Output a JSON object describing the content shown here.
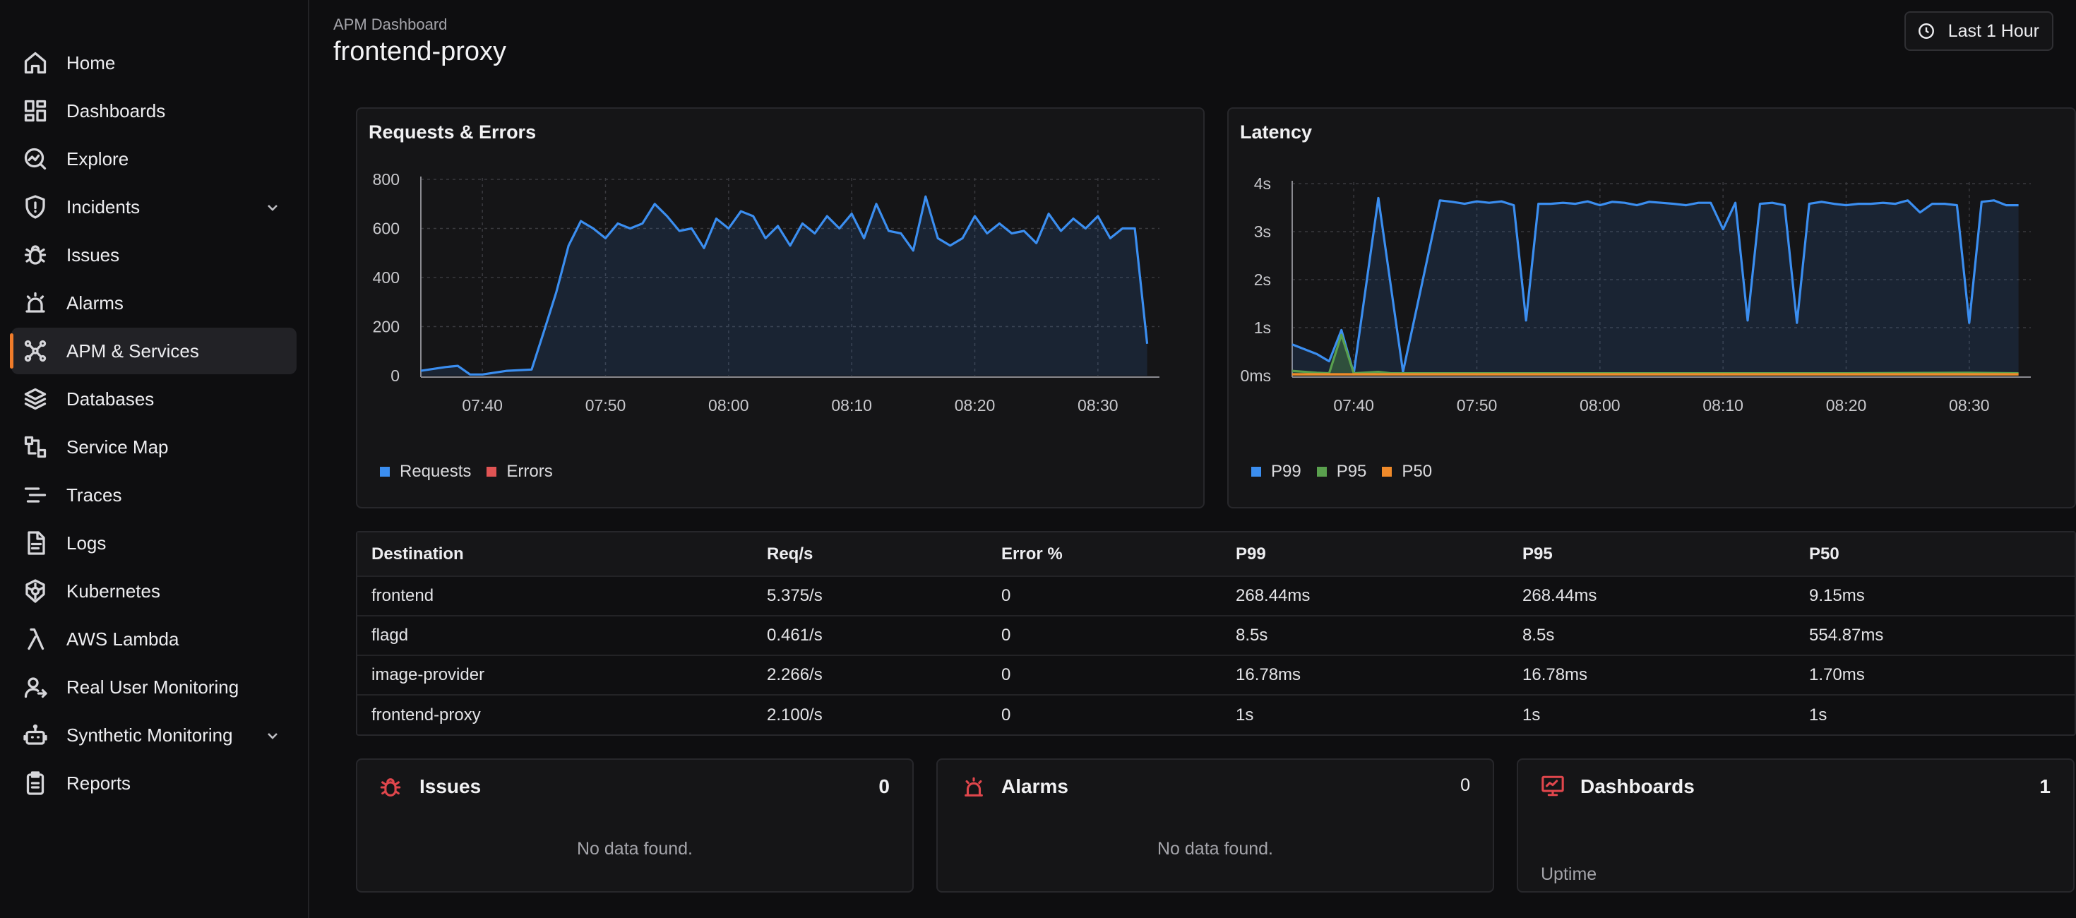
{
  "sidebar": {
    "items": [
      {
        "label": "Home",
        "icon": "home-icon"
      },
      {
        "label": "Dashboards",
        "icon": "dashboards-icon"
      },
      {
        "label": "Explore",
        "icon": "explore-icon"
      },
      {
        "label": "Incidents",
        "icon": "shield-icon",
        "expandable": true
      },
      {
        "label": "Issues",
        "icon": "bug-icon"
      },
      {
        "label": "Alarms",
        "icon": "alarm-icon"
      },
      {
        "label": "APM & Services",
        "icon": "apm-icon",
        "active": true
      },
      {
        "label": "Databases",
        "icon": "database-icon"
      },
      {
        "label": "Service Map",
        "icon": "service-map-icon"
      },
      {
        "label": "Traces",
        "icon": "traces-icon"
      },
      {
        "label": "Logs",
        "icon": "logs-icon"
      },
      {
        "label": "Kubernetes",
        "icon": "kubernetes-icon"
      },
      {
        "label": "AWS Lambda",
        "icon": "lambda-icon"
      },
      {
        "label": "Real User Monitoring",
        "icon": "user-icon"
      },
      {
        "label": "Synthetic Monitoring",
        "icon": "robot-icon",
        "expandable": true
      },
      {
        "label": "Reports",
        "icon": "reports-icon"
      }
    ]
  },
  "header": {
    "breadcrumb": "APM Dashboard",
    "title": "frontend-proxy",
    "time_range": "Last 1 Hour"
  },
  "requests_card": {
    "title": "Requests & Errors"
  },
  "latency_card": {
    "title": "Latency"
  },
  "chart_data": [
    {
      "type": "area",
      "title": "Requests & Errors",
      "xlabel": "",
      "ylabel": "",
      "ylim": [
        0,
        800
      ],
      "yticks": [
        0,
        200,
        400,
        600,
        800
      ],
      "ytick_labels": [
        "0",
        "200",
        "400",
        "600",
        "800"
      ],
      "xticks": [
        "07:40",
        "07:50",
        "08:00",
        "08:10",
        "08:20",
        "08:30"
      ],
      "x_range": [
        "07:35",
        "08:35"
      ],
      "grid": true,
      "legend": "bottom-left",
      "series": [
        {
          "name": "Requests",
          "color": "#3b8ef0",
          "points": [
            [
              "07:35",
              20
            ],
            [
              "07:37",
              35
            ],
            [
              "07:38",
              40
            ],
            [
              "07:39",
              5
            ],
            [
              "07:40",
              5
            ],
            [
              "07:42",
              20
            ],
            [
              "07:44",
              25
            ],
            [
              "07:45",
              180
            ],
            [
              "07:46",
              340
            ],
            [
              "07:47",
              530
            ],
            [
              "07:48",
              630
            ],
            [
              "07:49",
              600
            ],
            [
              "07:50",
              560
            ],
            [
              "07:51",
              620
            ],
            [
              "07:52",
              600
            ],
            [
              "07:53",
              620
            ],
            [
              "07:54",
              700
            ],
            [
              "07:55",
              650
            ],
            [
              "07:56",
              590
            ],
            [
              "07:57",
              600
            ],
            [
              "07:58",
              520
            ],
            [
              "07:59",
              640
            ],
            [
              "08:00",
              600
            ],
            [
              "08:01",
              670
            ],
            [
              "08:02",
              650
            ],
            [
              "08:03",
              560
            ],
            [
              "08:04",
              610
            ],
            [
              "08:05",
              530
            ],
            [
              "08:06",
              620
            ],
            [
              "08:07",
              580
            ],
            [
              "08:08",
              650
            ],
            [
              "08:09",
              600
            ],
            [
              "08:10",
              660
            ],
            [
              "08:11",
              560
            ],
            [
              "08:12",
              700
            ],
            [
              "08:13",
              590
            ],
            [
              "08:14",
              580
            ],
            [
              "08:15",
              510
            ],
            [
              "08:16",
              730
            ],
            [
              "08:17",
              560
            ],
            [
              "08:18",
              530
            ],
            [
              "08:19",
              560
            ],
            [
              "08:20",
              650
            ],
            [
              "08:21",
              580
            ],
            [
              "08:22",
              620
            ],
            [
              "08:23",
              580
            ],
            [
              "08:24",
              590
            ],
            [
              "08:25",
              540
            ],
            [
              "08:26",
              660
            ],
            [
              "08:27",
              590
            ],
            [
              "08:28",
              640
            ],
            [
              "08:29",
              600
            ],
            [
              "08:30",
              650
            ],
            [
              "08:31",
              560
            ],
            [
              "08:32",
              600
            ],
            [
              "08:33",
              600
            ],
            [
              "08:34",
              130
            ]
          ]
        },
        {
          "name": "Errors",
          "color": "#e05454",
          "points": []
        }
      ]
    },
    {
      "type": "area",
      "title": "Latency",
      "xlabel": "",
      "ylabel": "",
      "ylim": [
        0,
        4
      ],
      "yticks": [
        0,
        1,
        2,
        3,
        4
      ],
      "ytick_labels": [
        "0ms",
        "1s",
        "2s",
        "3s",
        "4s"
      ],
      "xticks": [
        "07:40",
        "07:50",
        "08:00",
        "08:10",
        "08:20",
        "08:30"
      ],
      "x_range": [
        "07:35",
        "08:35"
      ],
      "grid": true,
      "legend": "bottom-left",
      "series": [
        {
          "name": "P99",
          "color": "#3b8ef0",
          "points": [
            [
              "07:35",
              0.65
            ],
            [
              "07:37",
              0.45
            ],
            [
              "07:38",
              0.3
            ],
            [
              "07:39",
              0.95
            ],
            [
              "07:40",
              0.05
            ],
            [
              "07:42",
              3.7
            ],
            [
              "07:44",
              0.08
            ],
            [
              "07:47",
              3.65
            ],
            [
              "07:48",
              3.62
            ],
            [
              "07:49",
              3.58
            ],
            [
              "07:50",
              3.63
            ],
            [
              "07:51",
              3.6
            ],
            [
              "07:52",
              3.63
            ],
            [
              "07:53",
              3.55
            ],
            [
              "07:54",
              1.15
            ],
            [
              "07:55",
              3.58
            ],
            [
              "07:56",
              3.58
            ],
            [
              "07:57",
              3.6
            ],
            [
              "07:58",
              3.58
            ],
            [
              "07:59",
              3.63
            ],
            [
              "08:00",
              3.55
            ],
            [
              "08:01",
              3.62
            ],
            [
              "08:02",
              3.6
            ],
            [
              "08:03",
              3.55
            ],
            [
              "08:04",
              3.62
            ],
            [
              "08:05",
              3.6
            ],
            [
              "08:06",
              3.58
            ],
            [
              "08:07",
              3.55
            ],
            [
              "08:08",
              3.6
            ],
            [
              "08:09",
              3.6
            ],
            [
              "08:10",
              3.05
            ],
            [
              "08:11",
              3.6
            ],
            [
              "08:12",
              1.15
            ],
            [
              "08:13",
              3.58
            ],
            [
              "08:14",
              3.6
            ],
            [
              "08:15",
              3.55
            ],
            [
              "08:16",
              1.1
            ],
            [
              "08:17",
              3.58
            ],
            [
              "08:18",
              3.62
            ],
            [
              "08:19",
              3.58
            ],
            [
              "08:20",
              3.55
            ],
            [
              "08:21",
              3.58
            ],
            [
              "08:22",
              3.58
            ],
            [
              "08:23",
              3.6
            ],
            [
              "08:24",
              3.58
            ],
            [
              "08:25",
              3.65
            ],
            [
              "08:26",
              3.4
            ],
            [
              "08:27",
              3.58
            ],
            [
              "08:28",
              3.58
            ],
            [
              "08:29",
              3.55
            ],
            [
              "08:30",
              1.1
            ],
            [
              "08:31",
              3.62
            ],
            [
              "08:32",
              3.65
            ],
            [
              "08:33",
              3.55
            ],
            [
              "08:34",
              3.55
            ]
          ]
        },
        {
          "name": "P95",
          "color": "#5aa04e",
          "points": [
            [
              "07:35",
              0.1
            ],
            [
              "07:37",
              0.06
            ],
            [
              "07:38",
              0.05
            ],
            [
              "07:39",
              0.85
            ],
            [
              "07:40",
              0.05
            ],
            [
              "07:42",
              0.08
            ],
            [
              "07:43",
              0.05
            ],
            [
              "07:44",
              0.05
            ],
            [
              "07:50",
              0.05
            ],
            [
              "08:00",
              0.05
            ],
            [
              "08:10",
              0.05
            ],
            [
              "08:20",
              0.05
            ],
            [
              "08:30",
              0.06
            ],
            [
              "08:34",
              0.05
            ]
          ]
        },
        {
          "name": "P50",
          "color": "#f08a2a",
          "points": [
            [
              "07:35",
              0.03
            ],
            [
              "07:40",
              0.03
            ],
            [
              "07:50",
              0.03
            ],
            [
              "08:00",
              0.03
            ],
            [
              "08:10",
              0.03
            ],
            [
              "08:20",
              0.03
            ],
            [
              "08:30",
              0.03
            ],
            [
              "08:34",
              0.03
            ]
          ]
        }
      ]
    }
  ],
  "table": {
    "headers": [
      "Destination",
      "Req/s",
      "Error %",
      "P99",
      "P95",
      "P50"
    ],
    "rows": [
      [
        "frontend",
        "5.375/s",
        "0",
        "268.44ms",
        "268.44ms",
        "9.15ms"
      ],
      [
        "flagd",
        "0.461/s",
        "0",
        "8.5s",
        "8.5s",
        "554.87ms"
      ],
      [
        "image-provider",
        "2.266/s",
        "0",
        "16.78ms",
        "16.78ms",
        "1.70ms"
      ],
      [
        "frontend-proxy",
        "2.100/s",
        "0",
        "1s",
        "1s",
        "1s"
      ]
    ]
  },
  "issues_card": {
    "title": "Issues",
    "count": "0",
    "empty": "No data found.",
    "icon_color": "#e0464c"
  },
  "alarms_card": {
    "title": "Alarms",
    "count": "0",
    "empty": "No data found.",
    "icon_color": "#e0464c"
  },
  "dashboards_card": {
    "title": "Dashboards",
    "count": "1",
    "subtitle": "Uptime",
    "icon_color": "#e0464c"
  }
}
